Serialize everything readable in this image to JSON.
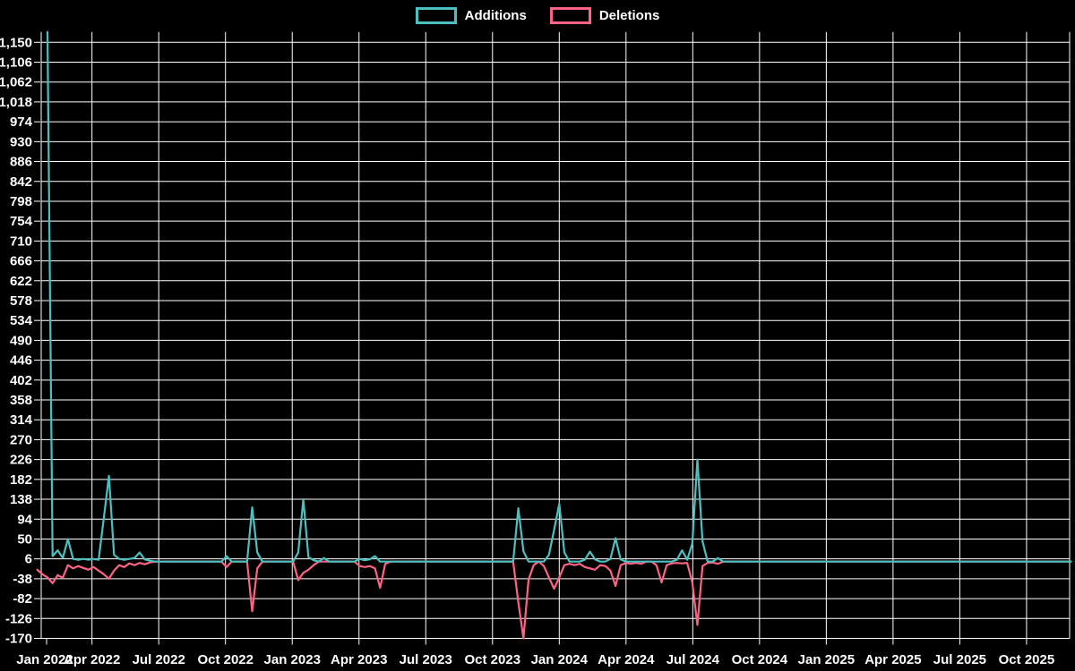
{
  "page": {
    "background": "#000000"
  },
  "legend": {
    "items": [
      {
        "label": "Additions",
        "color": "#4bc0c0"
      },
      {
        "label": "Deletions",
        "color": "#ff6384"
      }
    ]
  },
  "chart_data": {
    "type": "line",
    "title": "",
    "xlabel": "",
    "ylabel": "",
    "grid": true,
    "legend_position": "top-center",
    "background": "#000000",
    "grid_color": "#ffffff",
    "frequency": "weekly",
    "first_point": "2022-02",
    "x_axis": {
      "tick_labels": [
        "Jan 2022",
        "Apr 2022",
        "Jul 2022",
        "Oct 2022",
        "Jan 2023",
        "Apr 2023",
        "Jul 2023",
        "Oct 2023",
        "Jan 2024",
        "Apr 2024",
        "Jul 2024",
        "Oct 2024",
        "Jan 2025",
        "Apr 2025",
        "Jul 2025",
        "Oct 2025"
      ],
      "months_per_tick": 3
    },
    "y_axis": {
      "min": -170,
      "max": 1173,
      "tick_step": 44,
      "tick_values": [
        1150,
        1106,
        1062,
        1018,
        974,
        930,
        886,
        842,
        798,
        754,
        710,
        666,
        622,
        578,
        534,
        490,
        446,
        402,
        358,
        314,
        270,
        226,
        182,
        138,
        94,
        50,
        6,
        -38,
        -82,
        -126,
        -170
      ],
      "tick_labels": [
        "1,150",
        "1,106",
        "1,062",
        "1,018",
        "974",
        "930",
        "886",
        "842",
        "798",
        "754",
        "710",
        "666",
        "622",
        "578",
        "534",
        "490",
        "446",
        "402",
        "358",
        "314",
        "270",
        "226",
        "182",
        "138",
        "94",
        "50",
        "6",
        "-38",
        "-82",
        "-126",
        "-170"
      ]
    },
    "series": [
      {
        "name": "Additions",
        "color": "#4bc0c0",
        "week_start": 0,
        "week_end": 200,
        "default": 0,
        "sparse": {
          "0": 1173,
          "1": 12,
          "2": 25,
          "3": 8,
          "4": 50,
          "5": 6,
          "6": 4,
          "7": 6,
          "8": 4,
          "9": 6,
          "10": 4,
          "11": 95,
          "12": 190,
          "13": 15,
          "14": 6,
          "15": 4,
          "16": 6,
          "17": 8,
          "18": 20,
          "19": 5,
          "20": 2,
          "35": 12,
          "40": 120,
          "41": 20,
          "49": 20,
          "50": 138,
          "51": 10,
          "52": 3,
          "54": 8,
          "61": 6,
          "62": 3,
          "63": 5,
          "64": 12,
          "92": 118,
          "93": 23,
          "98": 15,
          "99": 70,
          "100": 128,
          "101": 20,
          "105": 4,
          "106": 22,
          "107": 5,
          "110": 6,
          "111": 52,
          "112": 5,
          "123": 4,
          "124": 25,
          "125": 4,
          "126": 40,
          "127": 226,
          "128": 45,
          "131": 8
        }
      },
      {
        "name": "Deletions",
        "color": "#ff6384",
        "week_start": -2,
        "week_end": 200,
        "default": 0,
        "sparse": {
          "-2": -18,
          "-1": -28,
          "0": -35,
          "1": -48,
          "2": -30,
          "3": -36,
          "4": -8,
          "5": -15,
          "6": -10,
          "7": -14,
          "8": -18,
          "9": -12,
          "10": -20,
          "11": -28,
          "12": -38,
          "13": -20,
          "14": -8,
          "15": -12,
          "16": -4,
          "17": -8,
          "18": -3,
          "19": -6,
          "20": -2,
          "35": -12,
          "40": -110,
          "41": -15,
          "49": -41,
          "50": -25,
          "51": -18,
          "52": -8,
          "61": -10,
          "62": -12,
          "63": -10,
          "64": -15,
          "65": -58,
          "66": -5,
          "92": -90,
          "93": -170,
          "94": -40,
          "95": -8,
          "97": -10,
          "98": -35,
          "99": -60,
          "100": -35,
          "101": -8,
          "102": -5,
          "103": -8,
          "104": -5,
          "105": -12,
          "106": -15,
          "107": -18,
          "108": -8,
          "109": -10,
          "110": -20,
          "111": -54,
          "112": -8,
          "113": -3,
          "114": -5,
          "115": -3,
          "116": -5,
          "119": -8,
          "120": -46,
          "121": -8,
          "122": -4,
          "123": -3,
          "124": -4,
          "125": -3,
          "126": -46,
          "127": -140,
          "128": -10,
          "129": -3,
          "130": -2,
          "131": -5
        }
      }
    ]
  }
}
